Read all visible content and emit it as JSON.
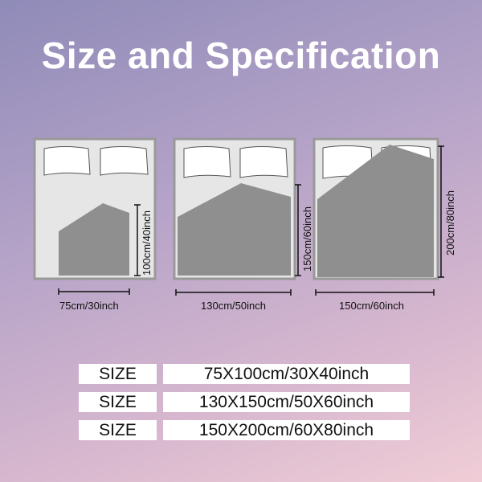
{
  "title": "Size and Specification",
  "beds": [
    {
      "width_label": "75cm/30inch",
      "height_label": "100cm/40inch"
    },
    {
      "width_label": "130cm/50inch",
      "height_label": "150cm/60inch"
    },
    {
      "width_label": "150cm/60inch",
      "height_label": "200cm/80inch"
    }
  ],
  "table": [
    {
      "label": "SIZE",
      "value": "75X100cm/30X40inch"
    },
    {
      "label": "SIZE",
      "value": "130X150cm/50X60inch"
    },
    {
      "label": "SIZE",
      "value": "150X200cm/60X80inch"
    }
  ]
}
